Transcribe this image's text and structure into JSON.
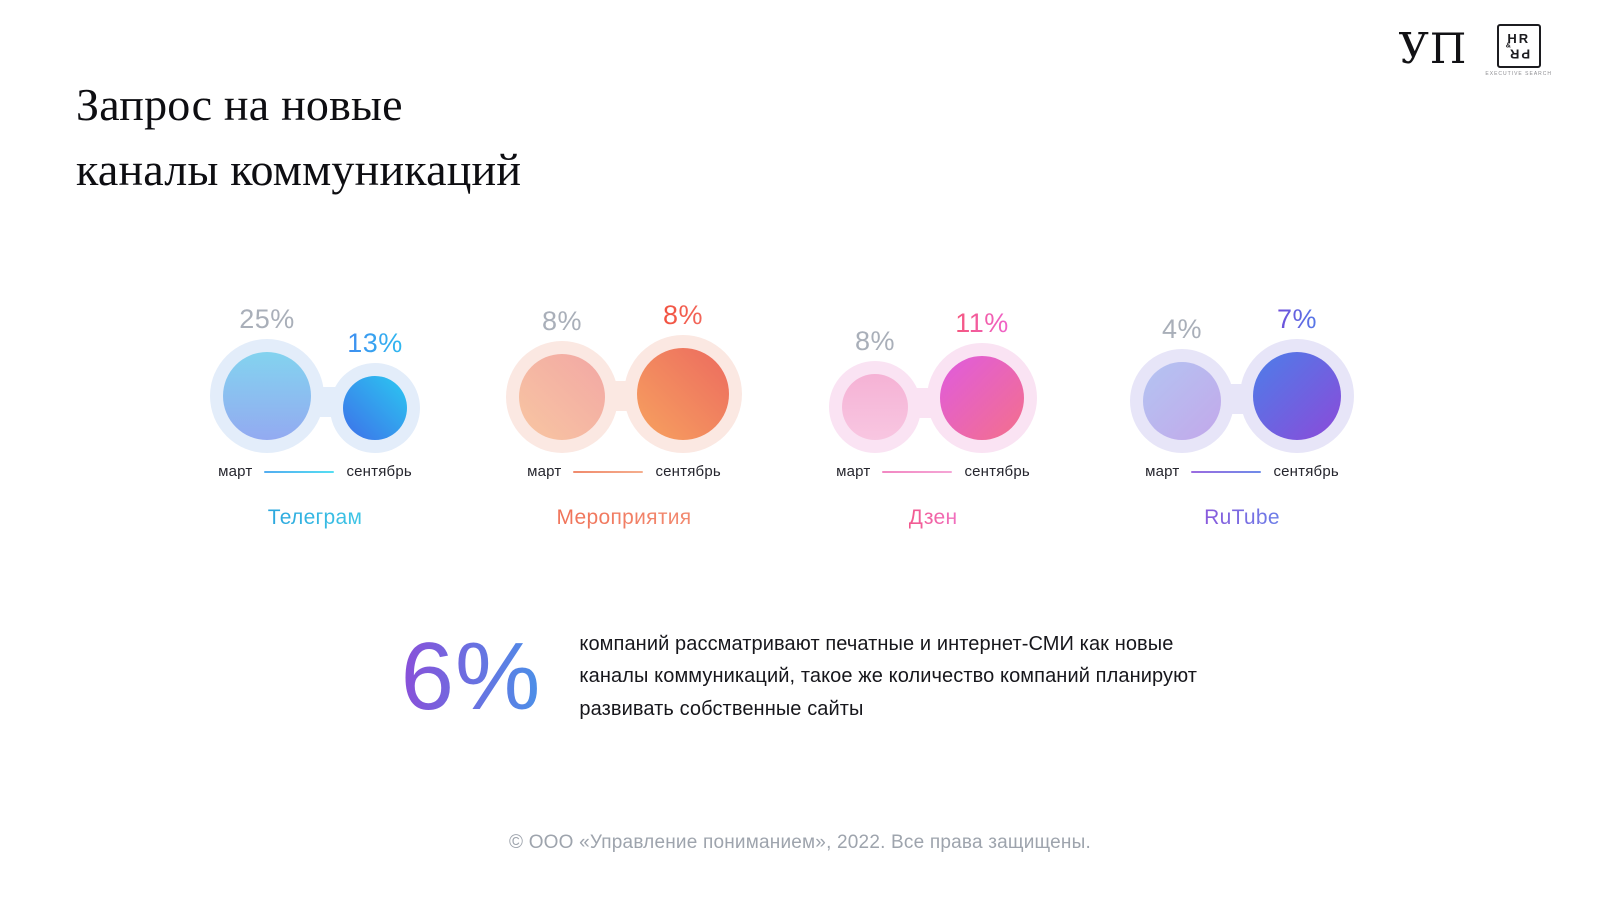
{
  "page": {
    "title_line1": "Запрос на новые",
    "title_line2": "каналы коммуникаций",
    "footer": "© ООО «Управление пониманием», 2022. Все права защищены."
  },
  "logos": {
    "up_monogram": "УП",
    "hrpr_top": "HR",
    "hrpr_bottom": "PR",
    "hrpr_amp": "&",
    "hrpr_caption": "EXECUTIVE SEARCH"
  },
  "highlight": {
    "value": "6%",
    "value_num": 6,
    "grad": {
      "from": "#8A4FD9",
      "to": "#4B90E8"
    },
    "text": "компаний рассматривают печатные и интернет-СМИ как новые каналы коммуникаций, такое же количество компаний планируют развивать собственные сайты"
  },
  "chart_data": {
    "type": "bubble-pairs",
    "title": "Запрос на новые каналы коммуникаций",
    "x_labels": [
      "март",
      "сентябрь"
    ],
    "muted_pct_color": "#A9AFB9",
    "groups": [
      {
        "label": "Телеграм",
        "label_grad": {
          "from": "#2CA7DE",
          "to": "#3EC6E6"
        },
        "halo": "#E3EDFA",
        "line_grad": {
          "from": "#53ACF0",
          "to": "#55DEF2"
        },
        "march": {
          "pct": "25%",
          "value": 25,
          "size": 88,
          "circle": {
            "angle": 180,
            "from": "#83D3EF",
            "to": "#93AAF1"
          }
        },
        "september": {
          "pct": "13%",
          "value": 13,
          "size": 64,
          "pct_grad": {
            "from": "#3E8DF0",
            "to": "#2FB9F0"
          },
          "circle": {
            "angle": 225,
            "from": "#2BC9F1",
            "to": "#3E6FE9"
          }
        }
      },
      {
        "label": "Мероприятия",
        "label_grad": {
          "from": "#F07258",
          "to": "#F28A70"
        },
        "halo": "#FBE8E2",
        "line_grad": {
          "from": "#F08A6C",
          "to": "#F5AE8E"
        },
        "march": {
          "pct": "8%",
          "value": 8,
          "size": 86,
          "circle": {
            "angle": 225,
            "from": "#F2A7A4",
            "to": "#F8C6A2"
          }
        },
        "september": {
          "pct": "8%",
          "value": 8,
          "size": 92,
          "pct_grad": {
            "from": "#F25240",
            "to": "#F2675C"
          },
          "circle": {
            "angle": 225,
            "from": "#EC6A5F",
            "to": "#F7A25F"
          }
        }
      },
      {
        "label": "Дзен",
        "label_grad": {
          "from": "#F2598E",
          "to": "#F06FBE"
        },
        "halo": "#FAE3F3",
        "line_grad": {
          "from": "#F287C2",
          "to": "#F5A6D6"
        },
        "march": {
          "pct": "8%",
          "value": 8,
          "size": 66,
          "circle": {
            "angle": 180,
            "from": "#F5B2D5",
            "to": "#F8C6E1"
          }
        },
        "september": {
          "pct": "11%",
          "value": 11,
          "size": 84,
          "pct_grad": {
            "from": "#F5577E",
            "to": "#EF63CC"
          },
          "circle": {
            "angle": 135,
            "from": "#DF5BDF",
            "to": "#F4708B"
          }
        }
      },
      {
        "label": "RuTube",
        "label_grad": {
          "from": "#8A5ADC",
          "to": "#6B7EE8"
        },
        "halo": "#E7E5F8",
        "line_grad": {
          "from": "#9B6BE0",
          "to": "#6F8CE9"
        },
        "march": {
          "pct": "4%",
          "value": 4,
          "size": 78,
          "circle": {
            "angle": 135,
            "from": "#B3C4F2",
            "to": "#C3A8EA"
          }
        },
        "september": {
          "pct": "7%",
          "value": 7,
          "size": 88,
          "pct_grad": {
            "from": "#6F4ED9",
            "to": "#5679E8"
          },
          "circle": {
            "angle": 135,
            "from": "#4C7EE9",
            "to": "#8C4AD9"
          }
        }
      }
    ]
  }
}
